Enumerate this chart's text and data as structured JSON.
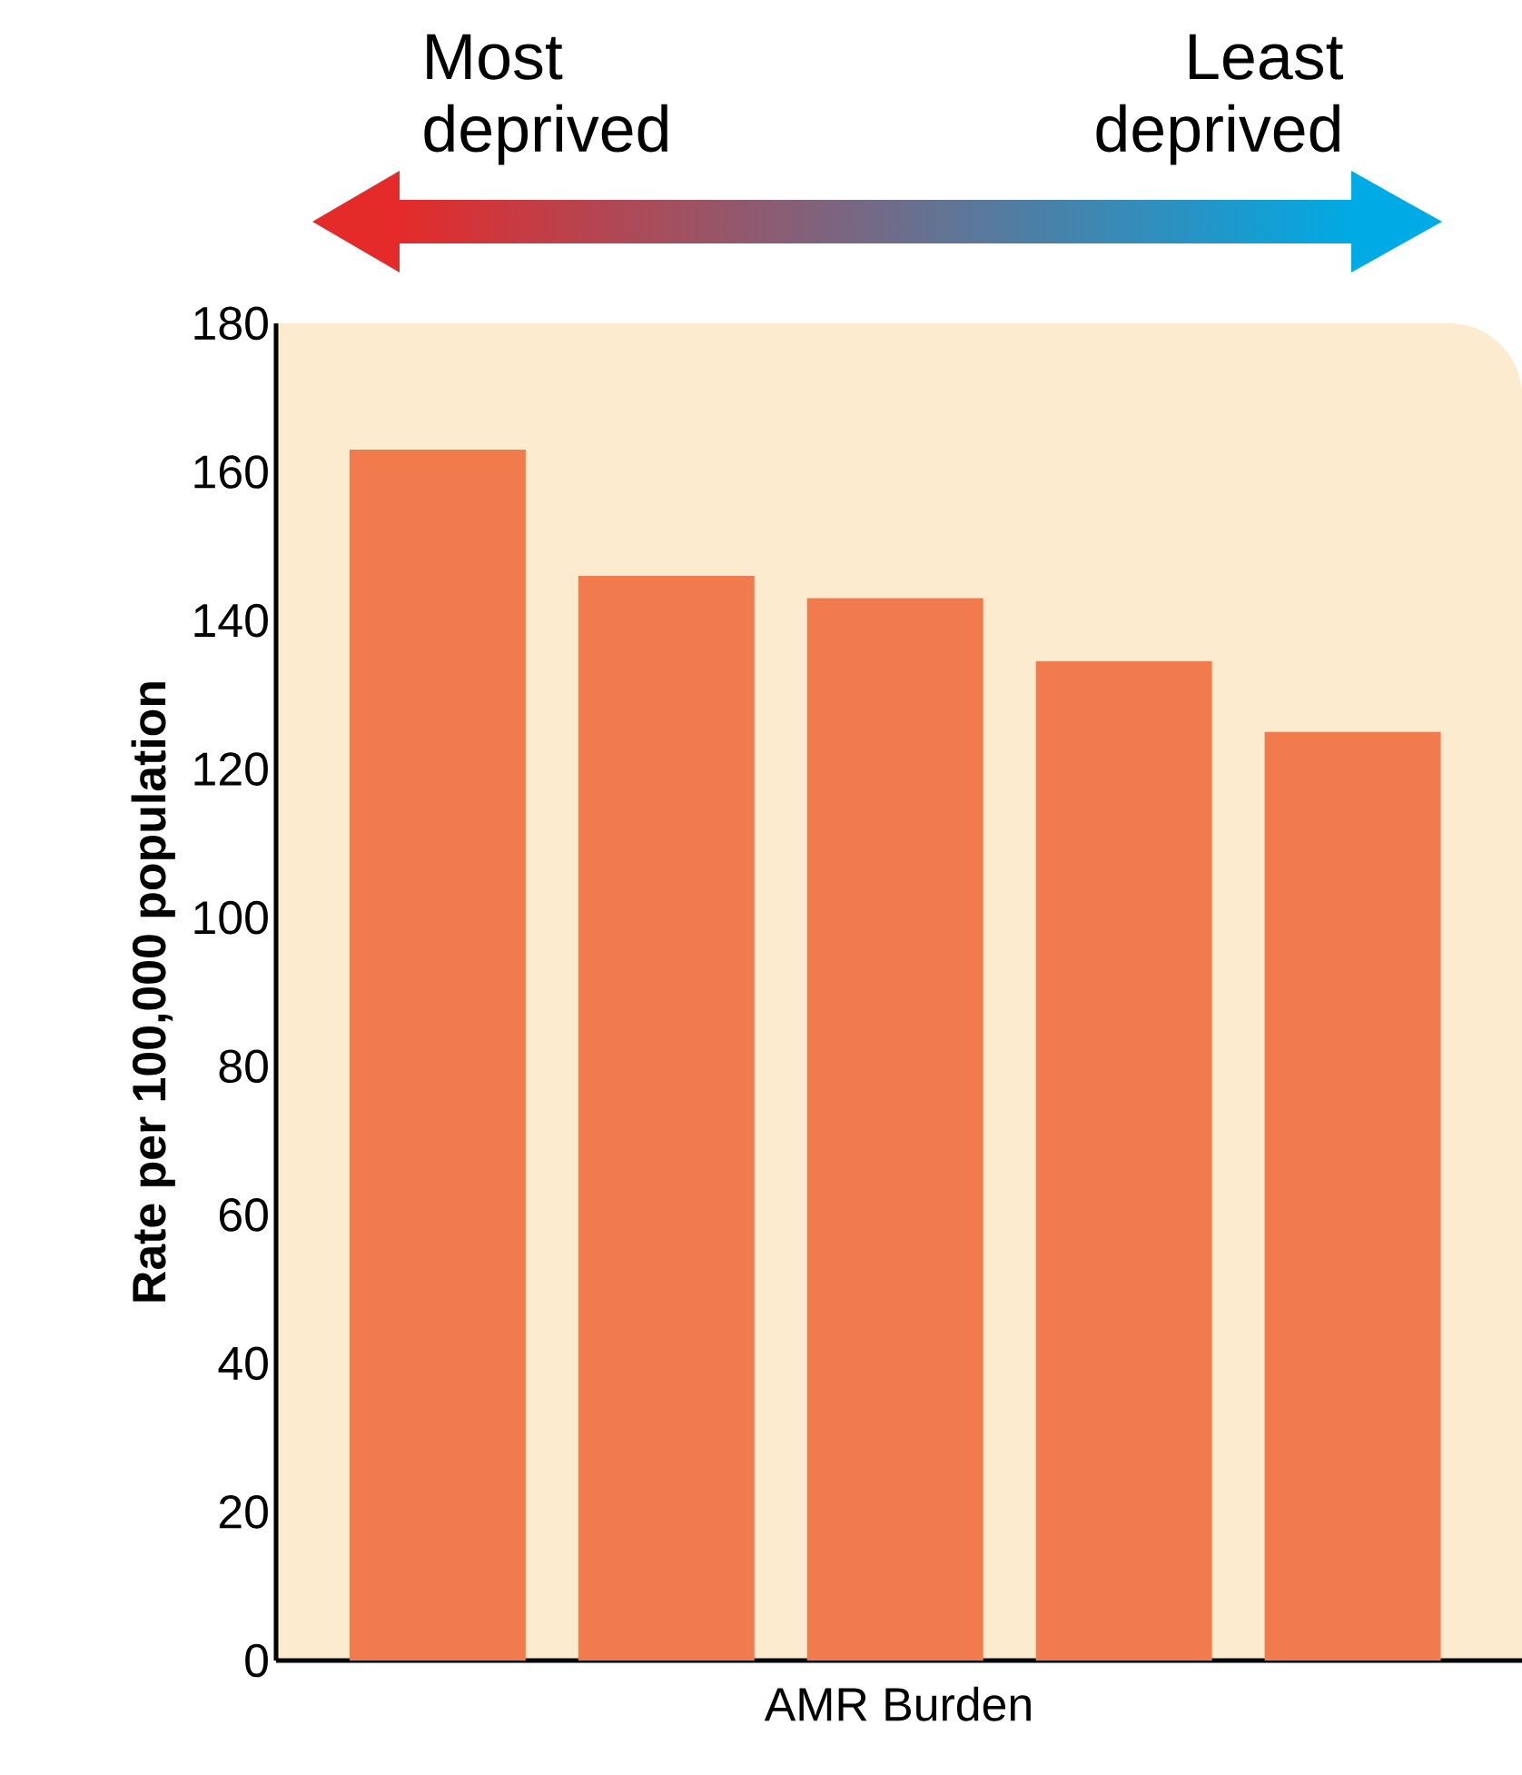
{
  "chart_data": {
    "type": "bar",
    "xlabel": "AMR Burden",
    "ylabel": "Rate per 100,000 population",
    "categories": [
      null,
      null,
      null,
      null,
      null
    ],
    "values": [
      163,
      146,
      143,
      134.5,
      125
    ],
    "color": "#f27b4d",
    "ylim": [
      0,
      180
    ],
    "yticks": [
      0,
      20,
      40,
      60,
      80,
      100,
      120,
      140,
      160,
      180
    ],
    "annotations": [
      "Most deprived",
      "Least deprived"
    ]
  }
}
